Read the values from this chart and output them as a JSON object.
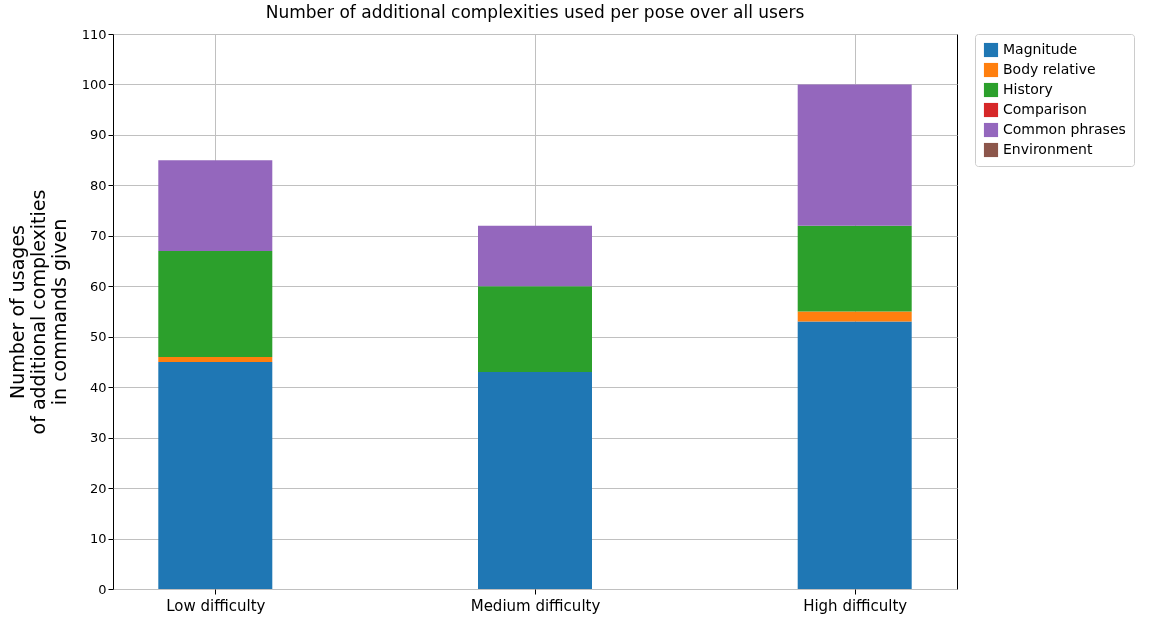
{
  "chart_data": {
    "type": "bar",
    "title": "Number of additional complexities used per pose over all users",
    "ylabel": "Number of usages\nof additional complexities\nin commands given",
    "categories": [
      "Low difficulty",
      "Medium difficulty",
      "High difficulty"
    ],
    "stacked": true,
    "series": [
      {
        "name": "Magnitude",
        "color": "#1f77b4",
        "values": [
          45,
          43,
          53
        ]
      },
      {
        "name": "Body relative",
        "color": "#ff7f0e",
        "values": [
          1,
          0,
          2
        ]
      },
      {
        "name": "History",
        "color": "#2ca02c",
        "values": [
          21,
          17,
          17
        ]
      },
      {
        "name": "Comparison",
        "color": "#d62728",
        "values": [
          0,
          0,
          0
        ]
      },
      {
        "name": "Common phrases",
        "color": "#9467bd",
        "values": [
          18,
          12,
          28
        ]
      },
      {
        "name": "Environment",
        "color": "#8c564b",
        "values": [
          0,
          0,
          0
        ]
      }
    ],
    "ylim": [
      0,
      110
    ],
    "yticks": [
      0,
      10,
      20,
      30,
      40,
      50,
      60,
      70,
      80,
      90,
      100,
      110
    ],
    "grid": true,
    "legend": "top right"
  }
}
